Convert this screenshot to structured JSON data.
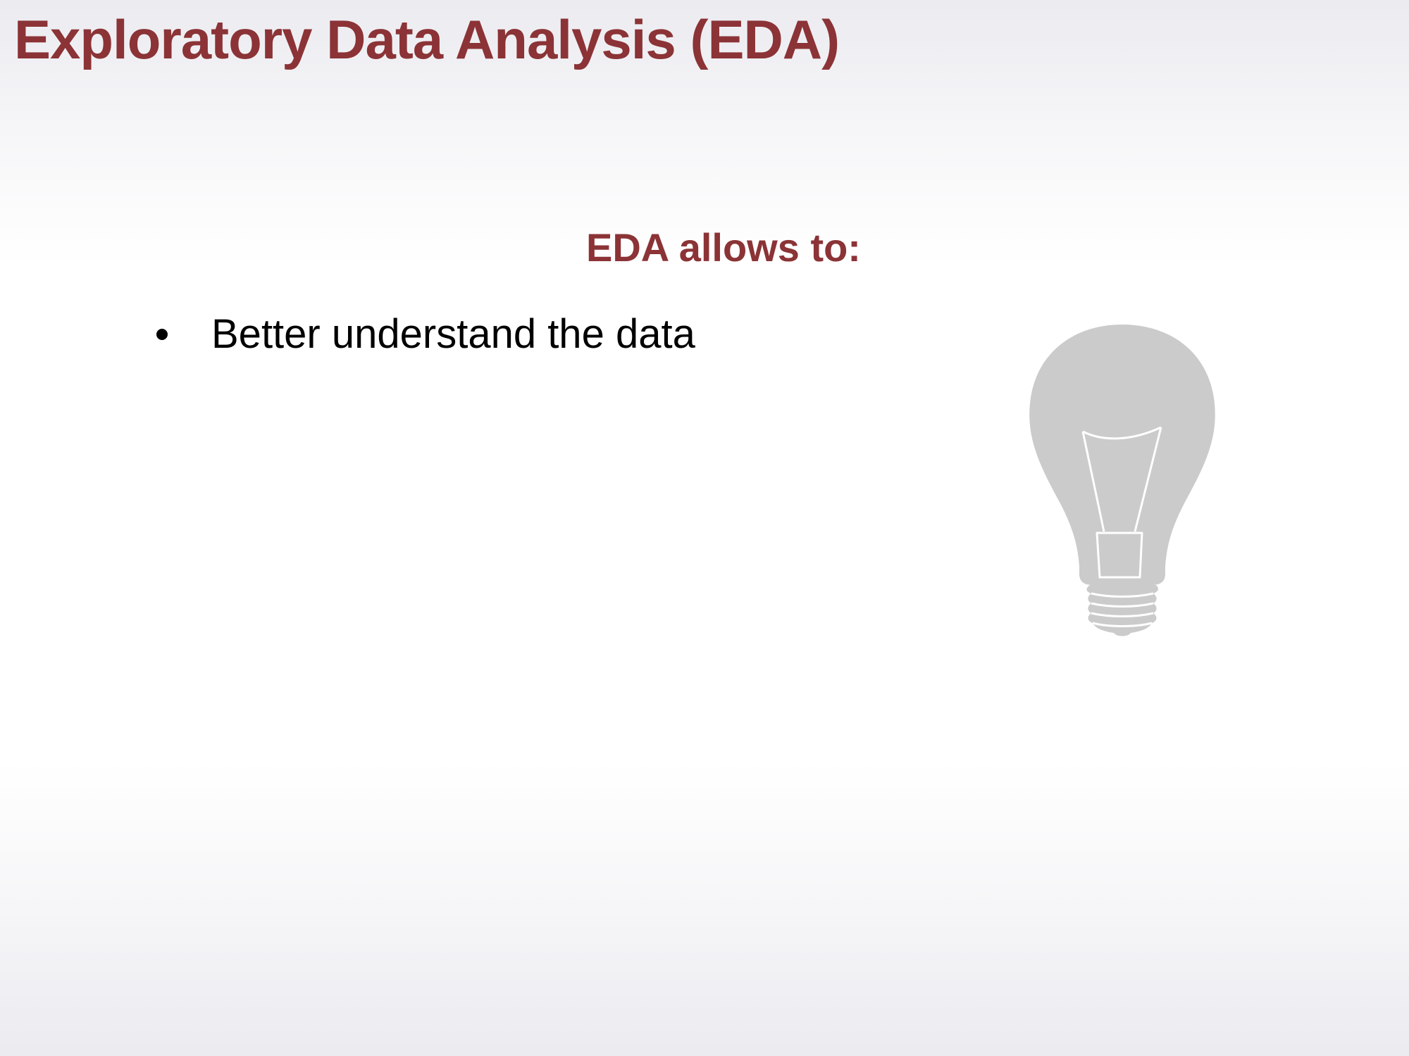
{
  "slide": {
    "title": "Exploratory Data Analysis (EDA)",
    "subtitle": "EDA allows to:",
    "bullets": [
      "Better understand the data"
    ],
    "icon": "lightbulb-icon"
  },
  "colors": {
    "accent": "#8b3336",
    "body_text": "#000000",
    "bulb_fill": "#cbcbcb",
    "bulb_outline": "#ffffff"
  }
}
